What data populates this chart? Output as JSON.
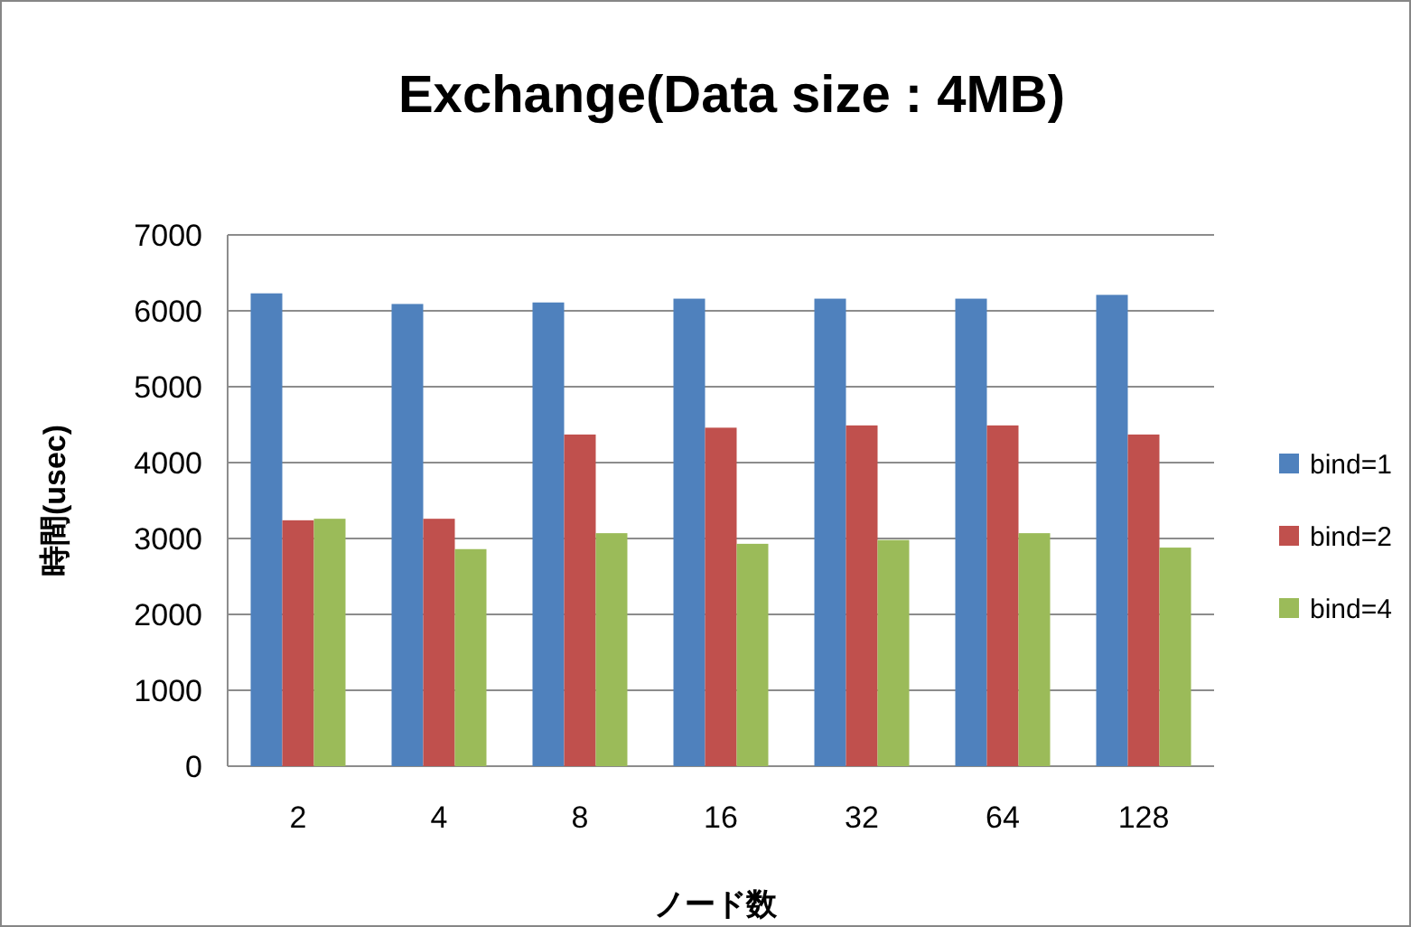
{
  "chart_data": {
    "type": "bar",
    "title": "Exchange(Data size : 4MB)",
    "xlabel": "ノード数",
    "ylabel": "時間(usec)",
    "categories": [
      "2",
      "4",
      "8",
      "16",
      "32",
      "64",
      "128"
    ],
    "series": [
      {
        "name": "bind=1",
        "color": "#4f81bd",
        "values": [
          6230,
          6090,
          6110,
          6160,
          6160,
          6160,
          6210
        ]
      },
      {
        "name": "bind=2",
        "color": "#c0504d",
        "values": [
          3240,
          3260,
          4370,
          4460,
          4490,
          4490,
          4370
        ]
      },
      {
        "name": "bind=4",
        "color": "#9bbb59",
        "values": [
          3260,
          2860,
          3070,
          2930,
          2980,
          3070,
          2880
        ]
      }
    ],
    "ylim": [
      0,
      7000
    ],
    "yticks": [
      0,
      1000,
      2000,
      3000,
      4000,
      5000,
      6000,
      7000
    ],
    "grid": "y",
    "legend": "right"
  }
}
